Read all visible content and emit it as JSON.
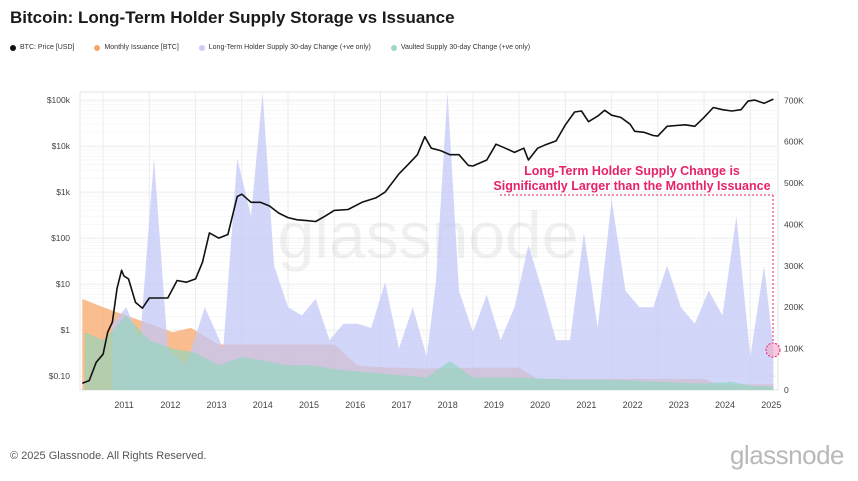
{
  "chart_data": {
    "type": "area",
    "title": "Bitcoin: Long-Term Holder Supply Storage vs Issuance",
    "legend": [
      {
        "name": "BTC: Price [USD]",
        "color": "#111111"
      },
      {
        "name": "Monthly Issuance [BTC]",
        "color": "#f7a76a"
      },
      {
        "name": "Long-Term Holder Supply 30-day Change (+ve only)",
        "color": "#c9cdf8"
      },
      {
        "name": "Vaulted Supply 30-day Change (+ve only)",
        "color": "#9ed9c4"
      }
    ],
    "x_ticks": [
      "2011",
      "2012",
      "2013",
      "2014",
      "2015",
      "2016",
      "2017",
      "2018",
      "2019",
      "2020",
      "2021",
      "2022",
      "2023",
      "2024",
      "2025"
    ],
    "y_left_ticks": [
      "$0.10",
      "$1",
      "$10",
      "$100",
      "$1k",
      "$10k",
      "$100k"
    ],
    "y_right_ticks": [
      "0",
      "100K",
      "200K",
      "300K",
      "400K",
      "500K",
      "600K",
      "700K"
    ],
    "y_left_scale": "log",
    "y_left_range": [
      0.05,
      150000
    ],
    "y_right_range": [
      0,
      720000
    ],
    "x_range": [
      2010.5,
      2025.6
    ],
    "grid": true,
    "legend_position": "top-left",
    "annotation": {
      "text_line1": "Long-Term Holder Supply Change is",
      "text_line2": "Significantly Larger than the Monthly Issuance",
      "color": "#e8216b"
    },
    "series": [
      {
        "name": "BTC: Price [USD]",
        "x": [
          2010.55,
          2010.7,
          2010.85,
          2011.0,
          2011.1,
          2011.2,
          2011.3,
          2011.4,
          2011.45,
          2011.55,
          2011.7,
          2011.85,
          2012.0,
          2012.2,
          2012.4,
          2012.6,
          2012.8,
          2013.0,
          2013.15,
          2013.3,
          2013.5,
          2013.7,
          2013.9,
          2014.0,
          2014.2,
          2014.4,
          2014.6,
          2014.8,
          2015.0,
          2015.2,
          2015.4,
          2015.6,
          2015.8,
          2016.0,
          2016.3,
          2016.6,
          2016.9,
          2017.1,
          2017.4,
          2017.6,
          2017.8,
          2017.96,
          2018.1,
          2018.3,
          2018.5,
          2018.7,
          2018.9,
          2019.0,
          2019.3,
          2019.5,
          2019.7,
          2019.9,
          2020.1,
          2020.2,
          2020.4,
          2020.6,
          2020.8,
          2021.0,
          2021.2,
          2021.35,
          2021.5,
          2021.7,
          2021.85,
          2022.0,
          2022.2,
          2022.4,
          2022.5,
          2022.7,
          2022.9,
          2023.0,
          2023.2,
          2023.4,
          2023.6,
          2023.8,
          2024.0,
          2024.2,
          2024.4,
          2024.6,
          2024.8,
          2024.95,
          2025.1,
          2025.3,
          2025.5
        ],
        "values": [
          0.07,
          0.08,
          0.2,
          0.3,
          0.9,
          1.5,
          8,
          20,
          15,
          13,
          4,
          3,
          5,
          5,
          5,
          12,
          11,
          13,
          30,
          130,
          100,
          120,
          800,
          900,
          600,
          600,
          500,
          350,
          280,
          250,
          240,
          230,
          300,
          400,
          420,
          600,
          750,
          1000,
          2500,
          4000,
          6500,
          16000,
          9000,
          8000,
          6500,
          6500,
          3800,
          3700,
          5000,
          11000,
          9000,
          7300,
          9000,
          5000,
          9000,
          11000,
          13000,
          29000,
          55000,
          58000,
          34000,
          45000,
          60000,
          47000,
          42000,
          30000,
          21000,
          20000,
          17000,
          16500,
          27000,
          28000,
          29000,
          27000,
          42000,
          69000,
          62000,
          58000,
          62000,
          95000,
          100000,
          85000,
          105000
        ]
      },
      {
        "name": "Monthly Issuance [BTC]",
        "x": [
          2010.55,
          2011.0,
          2011.5,
          2012.0,
          2012.5,
          2012.9,
          2013.5,
          2014.0,
          2015.0,
          2016.0,
          2016.5,
          2017.0,
          2018.0,
          2019.0,
          2020.0,
          2020.4,
          2021.0,
          2022.0,
          2023.0,
          2024.0,
          2024.3,
          2025.0,
          2025.5
        ],
        "values": [
          220000,
          200000,
          180000,
          160000,
          140000,
          150000,
          110000,
          110000,
          110000,
          110000,
          60000,
          55000,
          52000,
          54000,
          54000,
          27000,
          27000,
          27000,
          27000,
          27000,
          14000,
          14000,
          14000
        ]
      },
      {
        "name": "Long-Term Holder Supply 30-day Change (+ve only)",
        "x": [
          2011.2,
          2011.5,
          2011.8,
          2012.1,
          2012.4,
          2012.8,
          2013.2,
          2013.6,
          2013.9,
          2014.2,
          2014.45,
          2014.7,
          2015.0,
          2015.3,
          2015.6,
          2015.9,
          2016.2,
          2016.5,
          2016.8,
          2017.1,
          2017.4,
          2017.7,
          2018.0,
          2018.2,
          2018.45,
          2018.7,
          2019.0,
          2019.3,
          2019.6,
          2019.9,
          2020.2,
          2020.5,
          2020.8,
          2021.1,
          2021.4,
          2021.7,
          2022.0,
          2022.3,
          2022.6,
          2022.9,
          2023.2,
          2023.5,
          2023.8,
          2024.1,
          2024.4,
          2024.7,
          2025.0,
          2025.3,
          2025.5
        ],
        "values": [
          160000,
          200000,
          120000,
          560000,
          100000,
          60000,
          200000,
          100000,
          560000,
          420000,
          720000,
          300000,
          200000,
          180000,
          220000,
          120000,
          160000,
          160000,
          150000,
          260000,
          100000,
          200000,
          80000,
          260000,
          720000,
          240000,
          140000,
          230000,
          120000,
          200000,
          350000,
          240000,
          120000,
          120000,
          380000,
          150000,
          460000,
          240000,
          200000,
          200000,
          300000,
          200000,
          160000,
          240000,
          180000,
          420000,
          80000,
          300000,
          100000
        ]
      },
      {
        "name": "Vaulted Supply 30-day Change (+ve only)",
        "x": [
          2010.6,
          2011.0,
          2011.5,
          2012.0,
          2012.5,
          2013.0,
          2013.5,
          2014.0,
          2014.5,
          2015.0,
          2015.5,
          2016.0,
          2017.0,
          2018.0,
          2018.5,
          2019.0,
          2020.0,
          2021.0,
          2022.0,
          2023.0,
          2024.0,
          2024.6,
          2025.0,
          2025.5
        ],
        "values": [
          140000,
          120000,
          180000,
          120000,
          100000,
          90000,
          60000,
          80000,
          70000,
          60000,
          60000,
          50000,
          40000,
          30000,
          70000,
          30000,
          30000,
          25000,
          25000,
          20000,
          15000,
          20000,
          10000,
          8000
        ]
      }
    ]
  },
  "watermark": "glassnode",
  "footer": {
    "copyright": "© 2025 Glassnode. All Rights Reserved.",
    "logo": "glassnode"
  }
}
